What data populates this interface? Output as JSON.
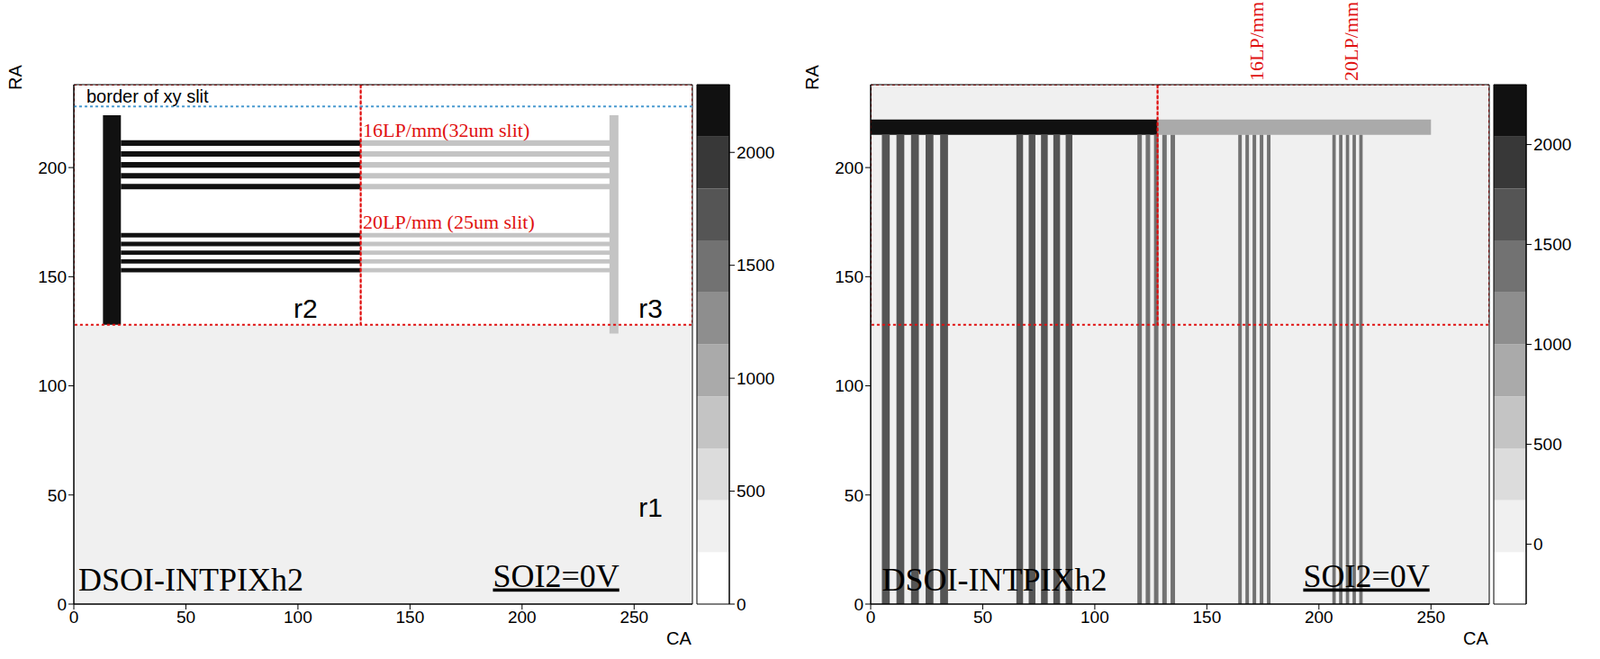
{
  "chart_data": [
    {
      "type": "heatmap",
      "x_label": "CA",
      "y_label": "RA",
      "xlim": [
        0,
        276
      ],
      "ylim": [
        0,
        238
      ],
      "xticks": [
        0,
        50,
        100,
        150,
        200,
        250
      ],
      "yticks": [
        0,
        50,
        100,
        150,
        200
      ],
      "colorbar": {
        "range": [
          0,
          2300
        ],
        "ticks": [
          0,
          500,
          1000,
          1500,
          2000
        ]
      },
      "cells": [
        {
          "x": [
            0,
            276
          ],
          "y": [
            0,
            128
          ],
          "value": 250
        },
        {
          "x": [
            0,
            276
          ],
          "y": [
            128,
            238
          ],
          "value": 40
        },
        {
          "x": [
            13,
            21
          ],
          "y": [
            128,
            224
          ],
          "value": 2200
        },
        {
          "x": [
            21,
            128
          ],
          "y": [
            210,
            212.5
          ],
          "value": 2200
        },
        {
          "x": [
            21,
            128
          ],
          "y": [
            205,
            207.5
          ],
          "value": 2200
        },
        {
          "x": [
            21,
            128
          ],
          "y": [
            200,
            202.5
          ],
          "value": 2200
        },
        {
          "x": [
            21,
            128
          ],
          "y": [
            195,
            197.5
          ],
          "value": 2200
        },
        {
          "x": [
            21,
            128
          ],
          "y": [
            190,
            192.5
          ],
          "value": 2200
        },
        {
          "x": [
            128,
            241
          ],
          "y": [
            210,
            212.5
          ],
          "value": 900
        },
        {
          "x": [
            128,
            241
          ],
          "y": [
            205,
            207.5
          ],
          "value": 900
        },
        {
          "x": [
            128,
            241
          ],
          "y": [
            200,
            202.5
          ],
          "value": 900
        },
        {
          "x": [
            128,
            241
          ],
          "y": [
            195,
            197.5
          ],
          "value": 900
        },
        {
          "x": [
            128,
            241
          ],
          "y": [
            190,
            192.5
          ],
          "value": 900
        },
        {
          "x": [
            21,
            128
          ],
          "y": [
            168,
            170
          ],
          "value": 2200
        },
        {
          "x": [
            21,
            128
          ],
          "y": [
            164,
            166
          ],
          "value": 2200
        },
        {
          "x": [
            21,
            128
          ],
          "y": [
            160,
            162
          ],
          "value": 2200
        },
        {
          "x": [
            21,
            128
          ],
          "y": [
            156,
            158
          ],
          "value": 2200
        },
        {
          "x": [
            21,
            128
          ],
          "y": [
            152,
            154
          ],
          "value": 2200
        },
        {
          "x": [
            128,
            241
          ],
          "y": [
            168,
            170
          ],
          "value": 900
        },
        {
          "x": [
            128,
            241
          ],
          "y": [
            164,
            166
          ],
          "value": 900
        },
        {
          "x": [
            128,
            241
          ],
          "y": [
            160,
            162
          ],
          "value": 900
        },
        {
          "x": [
            128,
            241
          ],
          "y": [
            156,
            158
          ],
          "value": 900
        },
        {
          "x": [
            128,
            241
          ],
          "y": [
            152,
            154
          ],
          "value": 900
        },
        {
          "x": [
            239,
            243
          ],
          "y": [
            124,
            224
          ],
          "value": 900
        }
      ],
      "regions": [
        {
          "x": [
            0,
            128
          ],
          "y": [
            128,
            238
          ]
        },
        {
          "x": [
            128,
            276
          ],
          "y": [
            128,
            238
          ]
        }
      ],
      "slit_border": {
        "text": "border of xy slit",
        "y": 228
      },
      "annotations": [
        {
          "text": "16LP/mm(32um slit)",
          "x": 129,
          "y": 214
        },
        {
          "text": "20LP/mm (25um slit)",
          "x": 129,
          "y": 172
        }
      ],
      "region_labels": [
        {
          "text": "r2",
          "x": 98,
          "y": 131
        },
        {
          "text": "r3",
          "x": 252,
          "y": 131
        },
        {
          "text": "r1",
          "x": 252,
          "y": 40
        }
      ],
      "panel_label": {
        "text": "DSOI-INTPIXh2",
        "x": 2,
        "y": 6
      },
      "condition": {
        "text": "SOI2=0V",
        "x": 187,
        "y": 8
      }
    },
    {
      "type": "heatmap",
      "x_label": "CA",
      "y_label": "RA",
      "xlim": [
        0,
        276
      ],
      "ylim": [
        0,
        238
      ],
      "xticks": [
        0,
        50,
        100,
        150,
        200,
        250
      ],
      "yticks": [
        0,
        50,
        100,
        150,
        200
      ],
      "colorbar": {
        "range": [
          -300,
          2300
        ],
        "ticks": [
          0,
          500,
          1000,
          1500,
          2000
        ]
      },
      "cells": [
        {
          "x": [
            0,
            276
          ],
          "y": [
            0,
            238
          ],
          "value": 0
        },
        {
          "x": [
            0,
            128
          ],
          "y": [
            215,
            222
          ],
          "value": 2200
        },
        {
          "x": [
            128,
            250
          ],
          "y": [
            215,
            222
          ],
          "value": 800
        },
        {
          "x": [
            5,
            8.5
          ],
          "y": [
            0,
            215
          ],
          "value": 1700
        },
        {
          "x": [
            11.5,
            15
          ],
          "y": [
            0,
            215
          ],
          "value": 1700
        },
        {
          "x": [
            18,
            21.5
          ],
          "y": [
            0,
            215
          ],
          "value": 1700
        },
        {
          "x": [
            24.5,
            28
          ],
          "y": [
            0,
            215
          ],
          "value": 1700
        },
        {
          "x": [
            31,
            34.5
          ],
          "y": [
            0,
            215
          ],
          "value": 1700
        },
        {
          "x": [
            65,
            68
          ],
          "y": [
            0,
            215
          ],
          "value": 1700
        },
        {
          "x": [
            70.5,
            73.5
          ],
          "y": [
            0,
            215
          ],
          "value": 1700
        },
        {
          "x": [
            76,
            79
          ],
          "y": [
            0,
            215
          ],
          "value": 1700
        },
        {
          "x": [
            81.5,
            84.5
          ],
          "y": [
            0,
            215
          ],
          "value": 1700
        },
        {
          "x": [
            87,
            90
          ],
          "y": [
            0,
            215
          ],
          "value": 1700
        },
        {
          "x": [
            119,
            121
          ],
          "y": [
            0,
            215
          ],
          "value": 1400
        },
        {
          "x": [
            122.7,
            124.7
          ],
          "y": [
            0,
            215
          ],
          "value": 1400
        },
        {
          "x": [
            126.4,
            128.4
          ],
          "y": [
            0,
            215
          ],
          "value": 1400
        },
        {
          "x": [
            130.1,
            132.1
          ],
          "y": [
            0,
            215
          ],
          "value": 1400
        },
        {
          "x": [
            133.8,
            135.8
          ],
          "y": [
            0,
            215
          ],
          "value": 1400
        },
        {
          "x": [
            164,
            165.6
          ],
          "y": [
            0,
            215
          ],
          "value": 1300
        },
        {
          "x": [
            167.2,
            168.8
          ],
          "y": [
            0,
            215
          ],
          "value": 1300
        },
        {
          "x": [
            170.4,
            172
          ],
          "y": [
            0,
            215
          ],
          "value": 1300
        },
        {
          "x": [
            173.6,
            175.2
          ],
          "y": [
            0,
            215
          ],
          "value": 1300
        },
        {
          "x": [
            176.8,
            178.4
          ],
          "y": [
            0,
            215
          ],
          "value": 1300
        },
        {
          "x": [
            206,
            207.5
          ],
          "y": [
            0,
            215
          ],
          "value": 1300
        },
        {
          "x": [
            209,
            210.5
          ],
          "y": [
            0,
            215
          ],
          "value": 1300
        },
        {
          "x": [
            212,
            213.5
          ],
          "y": [
            0,
            215
          ],
          "value": 1300
        },
        {
          "x": [
            215,
            216.5
          ],
          "y": [
            0,
            215
          ],
          "value": 1300
        },
        {
          "x": [
            218,
            219.5
          ],
          "y": [
            0,
            215
          ],
          "value": 1300
        }
      ],
      "regions": [
        {
          "x": [
            0,
            128
          ],
          "y": [
            128,
            238
          ]
        },
        {
          "x": [
            128,
            276
          ],
          "y": [
            128,
            238
          ]
        }
      ],
      "top_labels": [
        {
          "text": "16LP/mm",
          "x": 172,
          "y": 238
        },
        {
          "text": "20LP/mm",
          "x": 214,
          "y": 238
        }
      ],
      "panel_label": {
        "text": "DSOI-INTPIXh2",
        "x": 5,
        "y": 6
      },
      "condition": {
        "text": "SOI2=0V",
        "x": 193,
        "y": 8
      }
    }
  ]
}
